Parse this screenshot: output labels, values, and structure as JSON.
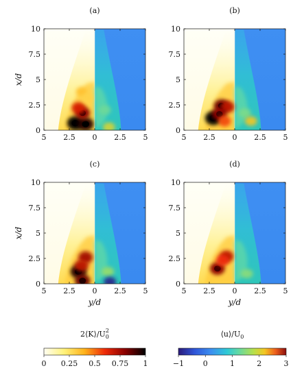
{
  "chart_data": [
    {
      "panel": "(a)",
      "type": "heatmap",
      "xlabel": "",
      "ylabel": "x/d",
      "x_ticks": [
        "5",
        "2.5",
        "0",
        "2.5",
        "5"
      ],
      "y_ticks": [
        "0",
        "2.5",
        "5",
        "7.5",
        "10"
      ],
      "xlim": [
        -5,
        5
      ],
      "ylim": [
        0,
        10
      ],
      "left_field": "2⟨K⟩/U0²",
      "right_field": "⟨u⟩/U0",
      "hotspots": [
        {
          "y": -1.9,
          "x": 0.7,
          "level": 1.0
        },
        {
          "y": -0.9,
          "x": 0.6,
          "level": 0.95
        },
        {
          "y": -1.2,
          "x": 1.7,
          "level": 0.8
        },
        {
          "y": -1.6,
          "x": 2.2,
          "level": 0.65
        },
        {
          "y": -1.3,
          "x": 3.8,
          "level": 0.35
        },
        {
          "y": -0.7,
          "x": 3.2,
          "level": 0.3
        }
      ],
      "velocity_plume": [
        {
          "y": 1.0,
          "x": 2.0,
          "level": 1.3
        },
        {
          "y": 1.4,
          "x": 0.3,
          "level": 2.0
        }
      ]
    },
    {
      "panel": "(b)",
      "type": "heatmap",
      "xlabel": "",
      "ylabel": "",
      "x_ticks": [
        "5",
        "2.5",
        "0",
        "2.5",
        "5"
      ],
      "y_ticks": [
        "0",
        "2.5",
        "5",
        "7.5",
        "10"
      ],
      "xlim": [
        -5,
        5
      ],
      "ylim": [
        0,
        10
      ],
      "hotspots": [
        {
          "y": -2.1,
          "x": 1.2,
          "level": 1.0
        },
        {
          "y": -1.3,
          "x": 2.4,
          "level": 0.85
        },
        {
          "y": -0.7,
          "x": 2.3,
          "level": 0.7
        },
        {
          "y": -1.5,
          "x": 1.6,
          "level": 0.8
        },
        {
          "y": -1.0,
          "x": 0.9,
          "level": 0.55
        }
      ],
      "velocity_plume": [
        {
          "y": 1.0,
          "x": 1.7,
          "level": 1.4
        },
        {
          "y": 1.6,
          "x": 0.9,
          "level": 2.2
        }
      ]
    },
    {
      "panel": "(c)",
      "type": "heatmap",
      "xlabel": "y/d",
      "ylabel": "x/d",
      "x_ticks": [
        "5",
        "2.5",
        "0",
        "2.5",
        "5"
      ],
      "y_ticks": [
        "0",
        "2.5",
        "5",
        "7.5",
        "10"
      ],
      "xlim": [
        -5,
        5
      ],
      "ylim": [
        0,
        10
      ],
      "hotspots": [
        {
          "y": -1.6,
          "x": 1.2,
          "level": 0.95
        },
        {
          "y": -0.9,
          "x": 2.6,
          "level": 0.75
        },
        {
          "y": -1.3,
          "x": 1.8,
          "level": 0.7
        },
        {
          "y": -1.2,
          "x": 0.3,
          "level": 0.85
        }
      ],
      "velocity_plume": [
        {
          "y": 1.3,
          "x": 1.2,
          "level": 1.6
        },
        {
          "y": 1.5,
          "x": 0.2,
          "level": -0.9
        }
      ]
    },
    {
      "panel": "(d)",
      "type": "heatmap",
      "xlabel": "y/d",
      "ylabel": "",
      "x_ticks": [
        "5",
        "2.5",
        "0",
        "2.5",
        "5"
      ],
      "y_ticks": [
        "0",
        "2.5",
        "5",
        "7.5",
        "10"
      ],
      "xlim": [
        -5,
        5
      ],
      "ylim": [
        0,
        10
      ],
      "hotspots": [
        {
          "y": -1.7,
          "x": 1.5,
          "level": 0.8
        },
        {
          "y": -0.8,
          "x": 2.7,
          "level": 0.7
        },
        {
          "y": -1.2,
          "x": 2.3,
          "level": 0.6
        }
      ],
      "velocity_plume": [
        {
          "y": 1.2,
          "x": 1.0,
          "level": 1.5
        }
      ]
    }
  ],
  "colorbars": [
    {
      "label": "2⟨K⟩/U",
      "label_sub": "0",
      "label_sup": "2",
      "ticks": [
        "0",
        "0.25",
        "0.5",
        "0.75",
        "1"
      ],
      "range": [
        0,
        1
      ],
      "colormap": "afmhot-reversed"
    },
    {
      "label": "⟨u⟩/U",
      "label_sub": "0",
      "ticks": [
        "−1",
        "0",
        "1",
        "2",
        "3"
      ],
      "range": [
        -1,
        3
      ],
      "colormap": "jet"
    }
  ]
}
